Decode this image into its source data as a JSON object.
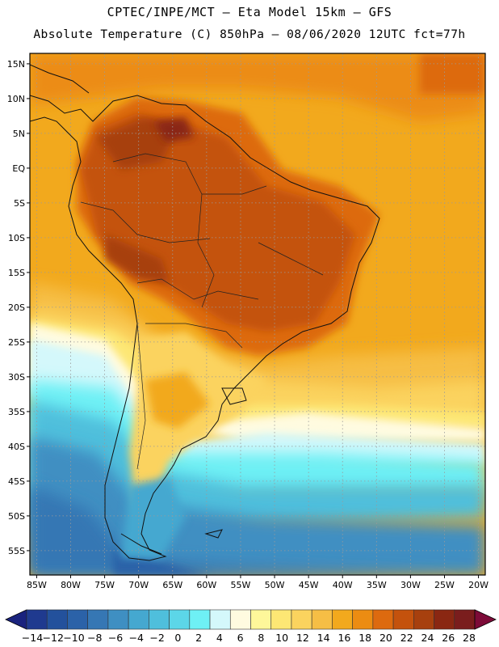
{
  "title": {
    "line1": "CPTEC/INPE/MCT –  Eta Model 15km – GFS",
    "line2": "Absolute Temperature (C) 850hPa – 08/06/2020 12UTC fct=77h"
  },
  "map": {
    "lat_labels": [
      "15N",
      "10N",
      "5N",
      "EQ",
      "5S",
      "10S",
      "15S",
      "20S",
      "25S",
      "30S",
      "35S",
      "40S",
      "45S",
      "50S",
      "55S"
    ],
    "lon_labels": [
      "85W",
      "80W",
      "75W",
      "70W",
      "65W",
      "60W",
      "55W",
      "50W",
      "45W",
      "40W",
      "35W",
      "30W",
      "25W",
      "20W"
    ],
    "lon_range": [
      -86,
      -19
    ],
    "lat_range": [
      -58.5,
      16.5
    ]
  },
  "colorbar": {
    "labels": [
      "-14",
      "-12",
      "-10",
      "-8",
      "-6",
      "-4",
      "-2",
      "0",
      "2",
      "4",
      "6",
      "8",
      "10",
      "12",
      "14",
      "16",
      "18",
      "20",
      "22",
      "24",
      "26",
      "28"
    ],
    "colors": [
      "#1f3a8f",
      "#23519c",
      "#2b62a8",
      "#3677b4",
      "#3f8fc2",
      "#45a8d0",
      "#4fbfdc",
      "#5cd6e8",
      "#6ef0f5",
      "#d4f8fb",
      "#fffbe0",
      "#fef79a",
      "#fde774",
      "#fbd35e",
      "#f6be45",
      "#f2a91d",
      "#ec8c12",
      "#dd6a0f",
      "#c4520d",
      "#a7400e",
      "#8a2712",
      "#7a1d1d"
    ],
    "under_color": "#1a237e",
    "over_color": "#7d0b38"
  },
  "colors": {
    "ocean_warm": "#f2a91d",
    "ocean_mid": "#f6be45",
    "land_hot": "#c4520d",
    "cold_sea": "#3f8fc2"
  }
}
